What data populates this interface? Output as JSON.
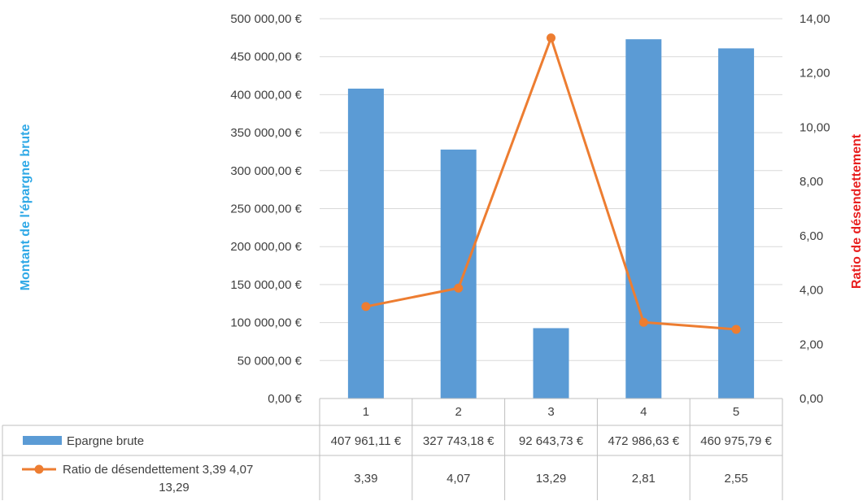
{
  "chart_data": {
    "type": "bar",
    "categories": [
      "1",
      "2",
      "3",
      "4",
      "5"
    ],
    "series": [
      {
        "name": "Epargne brute",
        "type": "bar",
        "axis": "left",
        "color": "#5B9BD5",
        "values": [
          407961.11,
          327743.18,
          92643.73,
          472986.63,
          460975.79
        ],
        "labels": [
          "407 961,11 €",
          "327 743,18 €",
          "92 643,73 €",
          "472 986,63 €",
          "460 975,79 €"
        ]
      },
      {
        "name": "Ratio de désendettement 3,39 4,07 13,29",
        "type": "line",
        "axis": "right",
        "color": "#ED7D31",
        "values": [
          3.39,
          4.07,
          13.29,
          2.81,
          2.55
        ],
        "labels": [
          "3,39",
          "4,07",
          "13,29",
          "2,81",
          "2,55"
        ]
      }
    ],
    "ylabel_left": "Montant de l'épargne brute",
    "ylabel_left_color": "#2EA8E6",
    "ylabel_right": "Ratio de désendettement",
    "ylabel_right_color": "#E81E1E",
    "ylim_left": [
      0,
      500000
    ],
    "ylim_right": [
      0,
      14
    ],
    "yticks_left": [
      "0,00 €",
      "50 000,00 €",
      "100 000,00 €",
      "150 000,00 €",
      "200 000,00 €",
      "250 000,00 €",
      "300 000,00 €",
      "350 000,00 €",
      "400 000,00 €",
      "450 000,00 €",
      "500 000,00 €"
    ],
    "yticks_right": [
      "0,00",
      "2,00",
      "4,00",
      "6,00",
      "8,00",
      "10,00",
      "12,00",
      "14,00"
    ],
    "grid": true,
    "data_table": true
  }
}
